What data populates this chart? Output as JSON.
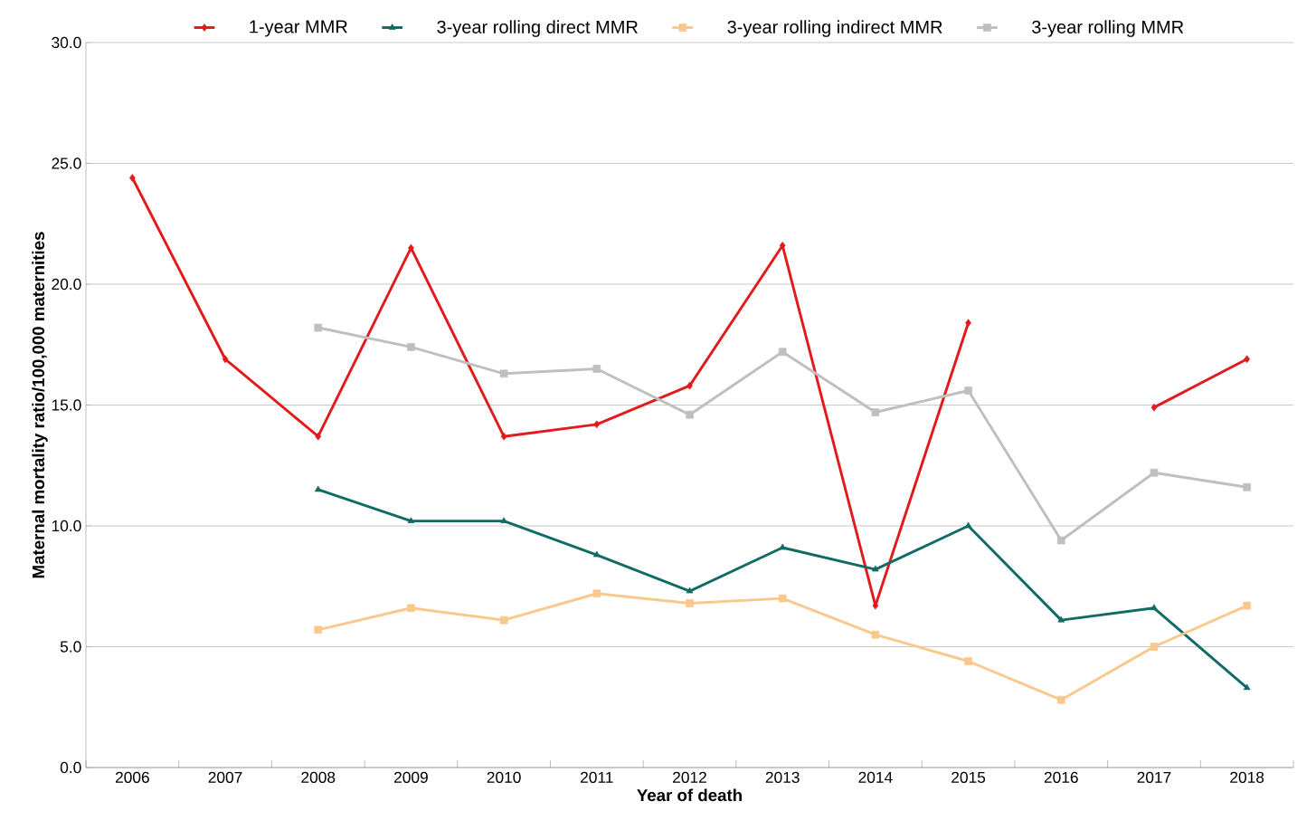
{
  "chart_data": {
    "type": "line",
    "xlabel": "Year of death",
    "ylabel": "Maternal mortality ratio/100,000 maternities",
    "categories": [
      "2006",
      "2007",
      "2008",
      "2009",
      "2010",
      "2011",
      "2012",
      "2013",
      "2014",
      "2015",
      "2016",
      "2017",
      "2018"
    ],
    "series": [
      {
        "name": "1-year MMR",
        "color": "#e31a1c",
        "marker": "diamond",
        "values": [
          24.4,
          16.9,
          13.7,
          21.5,
          13.7,
          14.2,
          15.8,
          21.6,
          6.7,
          18.4,
          null,
          14.9,
          16.9
        ]
      },
      {
        "name": "3-year rolling direct MMR",
        "color": "#0f6b63",
        "marker": "triangle",
        "values": [
          null,
          null,
          11.5,
          10.2,
          10.2,
          8.8,
          7.3,
          9.1,
          8.2,
          10.0,
          6.1,
          6.6,
          3.3
        ]
      },
      {
        "name": "3-year rolling indirect MMR",
        "color": "#fac88c",
        "marker": "square",
        "values": [
          null,
          null,
          5.7,
          6.6,
          6.1,
          7.2,
          6.8,
          7.0,
          5.5,
          4.4,
          2.8,
          5.0,
          6.7
        ]
      },
      {
        "name": "3-year rolling MMR",
        "color": "#bfbfbf",
        "marker": "square",
        "values": [
          null,
          null,
          18.2,
          17.4,
          16.3,
          16.5,
          14.6,
          17.2,
          14.7,
          15.6,
          9.4,
          12.2,
          11.6
        ]
      }
    ],
    "ylim": [
      0,
      30
    ],
    "yticks": [
      {
        "value": 0,
        "label": "0.0"
      },
      {
        "value": 5,
        "label": "5.0"
      },
      {
        "value": 10,
        "label": "10.0"
      },
      {
        "value": 15,
        "label": "15.0"
      },
      {
        "value": 20,
        "label": "20.0"
      },
      {
        "value": 25,
        "label": "25.0"
      },
      {
        "value": 30,
        "label": "30.0"
      }
    ],
    "grid": "y",
    "legend": "top",
    "line_style": "solid"
  }
}
